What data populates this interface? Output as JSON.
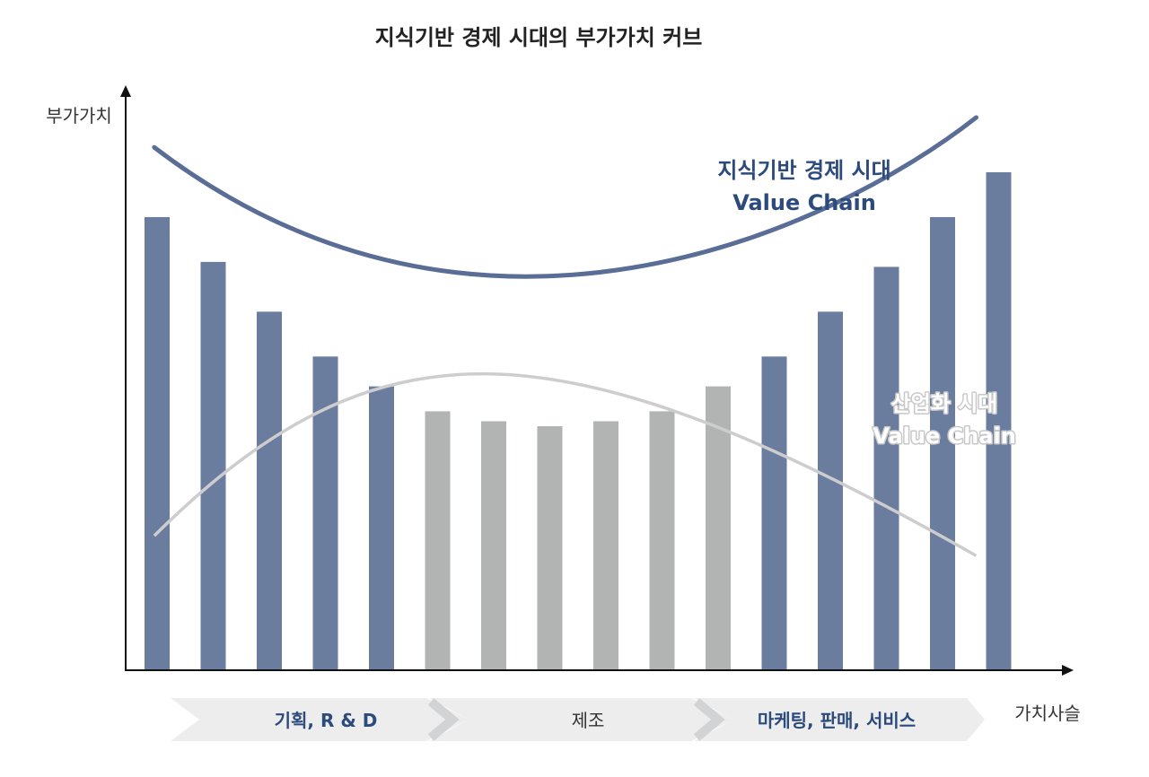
{
  "chart_data": {
    "type": "bar",
    "title": "지식기반 경제 시대의 부가가치 커브",
    "ylabel": "부가가치",
    "xlabel": "가치사슬",
    "ylim": [
      0,
      100
    ],
    "values": [
      91,
      82,
      72,
      63,
      57,
      52,
      50,
      49,
      50,
      52,
      57,
      63,
      72,
      81,
      91,
      100
    ],
    "bar_colors": [
      "#6b7d9f",
      "#6b7d9f",
      "#6b7d9f",
      "#6b7d9f",
      "#6b7d9f",
      "#b2b3b3",
      "#b2b3b3",
      "#b2b3b3",
      "#b2b3b3",
      "#b2b3b3",
      "#b2b3b3",
      "#6b7d9f",
      "#6b7d9f",
      "#6b7d9f",
      "#6b7d9f",
      "#6b7d9f"
    ],
    "knowledge_curve": {
      "line1": "지식기반 경제 시대",
      "line2": "Value Chain",
      "color": "#5a6d96",
      "text_color": "#2c4a7c",
      "points": [
        [
          -0.05,
          105
        ],
        [
          5.7,
          55.5
        ],
        [
          12,
          88
        ],
        [
          14.6,
          111
        ]
      ]
    },
    "industrial_curve": {
      "line1": "산업화 시대",
      "line2": "Value Chain",
      "color": "#cdcdcd",
      "text_color": "#ffffff",
      "points": [
        [
          -0.05,
          27
        ],
        [
          3.9,
          71
        ],
        [
          7.1,
          71
        ],
        [
          14.6,
          23
        ]
      ]
    },
    "stages": [
      {
        "label": "기획, R & D",
        "color": "#2c4a7c"
      },
      {
        "label": "제조",
        "color": "#333333"
      },
      {
        "label": "마케팅, 판매, 서비스",
        "color": "#2c4a7c"
      }
    ]
  }
}
